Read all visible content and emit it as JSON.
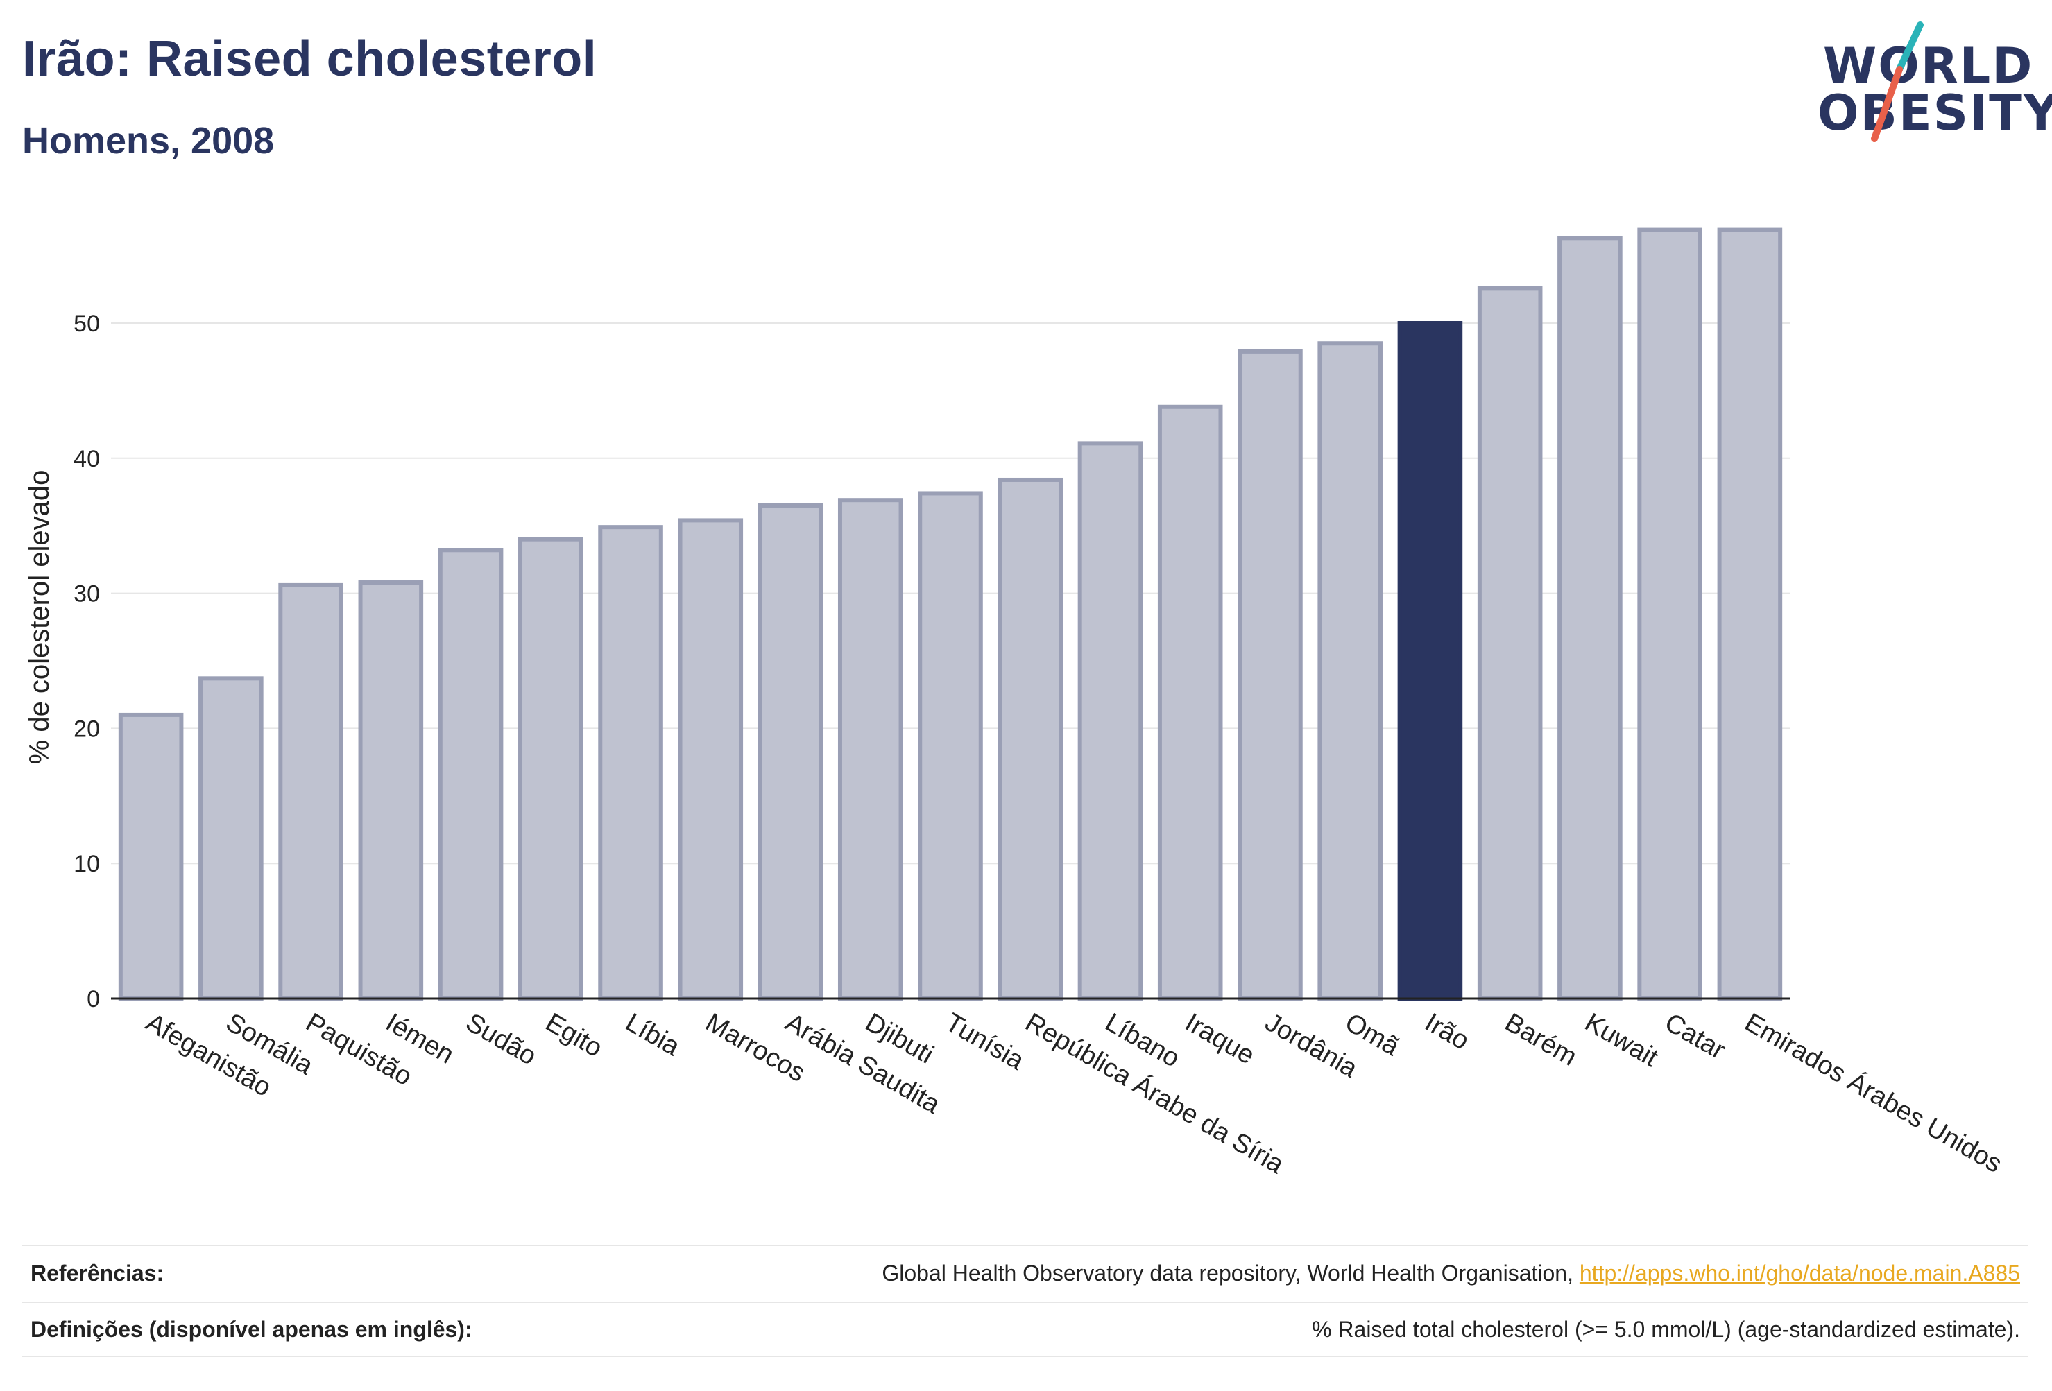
{
  "header": {
    "title": "Irão: Raised cholesterol",
    "subtitle": "Homens, 2008"
  },
  "logo": {
    "line1": "WORLD",
    "line2": "OBESITY"
  },
  "colors": {
    "title": "#2a3560",
    "bar": "#bfc2d0",
    "bar_border": "#9a9fb5",
    "highlight": "#2a3560",
    "link": "#e8a820",
    "logo_slash_teal": "#2ab3b8",
    "logo_slash_orange": "#e8604a"
  },
  "chart_data": {
    "type": "bar",
    "ylabel": "% de colesterol elevado",
    "ylim": [
      0,
      60
    ],
    "yticks": [
      0,
      10,
      20,
      30,
      40,
      50
    ],
    "grid": true,
    "highlight": "Irão",
    "categories": [
      "Afeganistão",
      "Somália",
      "Paquistão",
      "Iémen",
      "Sudão",
      "Egito",
      "Líbia",
      "Marrocos",
      "Arábia Saudita",
      "Djibuti",
      "Tunísia",
      "República Árabe da Síria",
      "Líbano",
      "Iraque",
      "Jordânia",
      "Omã",
      "Irão",
      "Barém",
      "Kuwait",
      "Catar",
      "Emirados Árabes Unidos"
    ],
    "values": [
      21.0,
      23.7,
      30.6,
      30.8,
      33.2,
      34.0,
      34.9,
      35.4,
      36.5,
      36.9,
      37.4,
      38.4,
      41.1,
      43.8,
      47.9,
      48.5,
      50.0,
      52.6,
      56.3,
      56.9,
      56.9
    ]
  },
  "footer": {
    "references_label": "Referências:",
    "references_text": "Global Health Observatory data repository, World Health Organisation,",
    "references_link": "http://apps.who.int/gho/data/node.main.A885",
    "definitions_label": "Definições (disponível apenas em inglês):",
    "definitions_text": "% Raised total cholesterol (>= 5.0 mmol/L) (age-standardized estimate)."
  }
}
